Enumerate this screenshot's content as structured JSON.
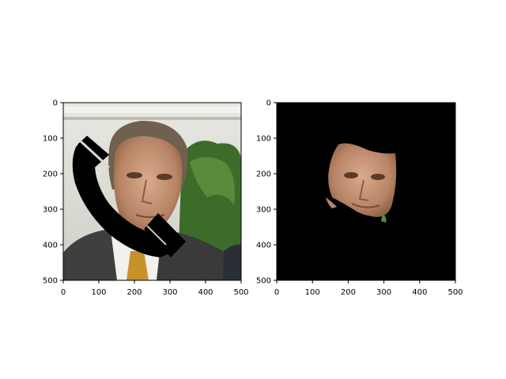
{
  "chart_data": [
    {
      "type": "image",
      "name": "left-panel",
      "xlim": [
        0,
        500
      ],
      "ylim": [
        500,
        0
      ],
      "x_ticks": [
        "0",
        "100",
        "200",
        "300",
        "400",
        "500"
      ],
      "y_ticks": [
        "0",
        "100",
        "200",
        "300",
        "400",
        "500"
      ],
      "content": "photo of a man's face with a black phone-shaped occlusion mask",
      "grid": false
    },
    {
      "type": "image",
      "name": "right-panel",
      "xlim": [
        0,
        500
      ],
      "ylim": [
        500,
        0
      ],
      "x_ticks": [
        "0",
        "100",
        "200",
        "300",
        "400",
        "500"
      ],
      "y_ticks": [
        "0",
        "100",
        "200",
        "300",
        "400",
        "500"
      ],
      "content": "segmented face region on black background",
      "grid": false
    }
  ],
  "colors": {
    "axis": "#000000",
    "mask": "#000000",
    "background_panel2": "#000000",
    "skin": "#c99a7c",
    "hair": "#6f604f",
    "suit": "#3f3f3f",
    "foliage": "#3d6b2a",
    "building": "#dcdcd6"
  }
}
